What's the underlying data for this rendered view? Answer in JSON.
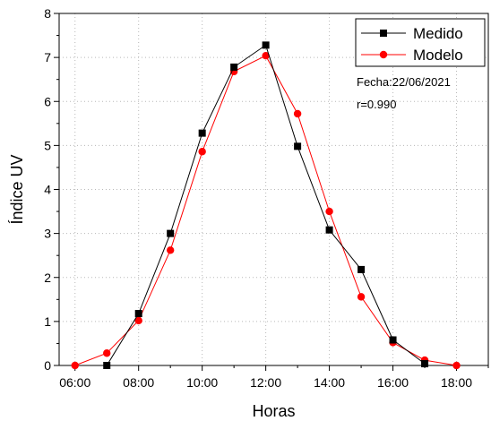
{
  "chart_data": {
    "type": "line",
    "xlabel": "Horas",
    "ylabel": "Índice UV",
    "x_ticks": [
      "06:00",
      "08:00",
      "10:00",
      "12:00",
      "14:00",
      "16:00",
      "18:00"
    ],
    "y_ticks": [
      "0",
      "1",
      "2",
      "3",
      "4",
      "5",
      "6",
      "7",
      "8"
    ],
    "xlim": [
      "05:30",
      "19:00"
    ],
    "ylim": [
      0,
      8
    ],
    "grid": true,
    "legend_position": "top-right",
    "series": [
      {
        "name": "Medido",
        "color": "#000000",
        "marker": "square",
        "x": [
          "07:00",
          "08:00",
          "09:00",
          "10:00",
          "11:00",
          "12:00",
          "13:00",
          "14:00",
          "15:00",
          "16:00",
          "17:00"
        ],
        "y": [
          0.0,
          1.18,
          3.0,
          5.28,
          6.78,
          7.28,
          4.98,
          3.08,
          2.18,
          0.58,
          0.04
        ]
      },
      {
        "name": "Modelo",
        "color": "#ff0000",
        "marker": "circle",
        "x": [
          "06:00",
          "07:00",
          "08:00",
          "09:00",
          "10:00",
          "11:00",
          "12:00",
          "13:00",
          "14:00",
          "15:00",
          "16:00",
          "17:00",
          "18:00"
        ],
        "y": [
          0.0,
          0.28,
          1.02,
          2.62,
          4.86,
          6.68,
          7.04,
          5.72,
          3.5,
          1.56,
          0.52,
          0.12,
          0.0
        ]
      }
    ],
    "annotations": [
      "Fecha:22/06/2021",
      "r=0.990"
    ]
  }
}
